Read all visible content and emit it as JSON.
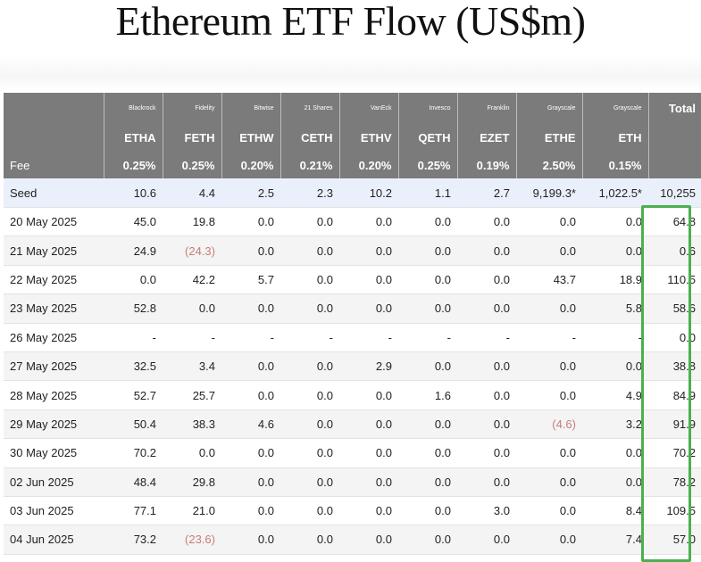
{
  "title": "Ethereum ETF Flow (US$m)",
  "columns": {
    "issuers": [
      "Blackrock",
      "Fidelity",
      "Bitwise",
      "21 Shares",
      "VanEck",
      "Invesco",
      "Franklin",
      "Grayscale",
      "Grayscale"
    ],
    "total_label": "Total",
    "tickers": [
      "ETHA",
      "FETH",
      "ETHW",
      "CETH",
      "ETHV",
      "QETH",
      "EZET",
      "ETHE",
      "ETH"
    ],
    "fee_label": "Fee",
    "fees": [
      "0.25%",
      "0.25%",
      "0.20%",
      "0.21%",
      "0.20%",
      "0.25%",
      "0.19%",
      "2.50%",
      "0.15%"
    ]
  },
  "rows": [
    {
      "label": "Seed",
      "values": [
        "10.6",
        "4.4",
        "2.5",
        "2.3",
        "10.2",
        "1.1",
        "2.7",
        "9,199.3*",
        "1,022.5*"
      ],
      "total": "10,255"
    },
    {
      "label": "20 May 2025",
      "values": [
        "45.0",
        "19.8",
        "0.0",
        "0.0",
        "0.0",
        "0.0",
        "0.0",
        "0.0",
        "0.0"
      ],
      "total": "64.8"
    },
    {
      "label": "21 May 2025",
      "values": [
        "24.9",
        "(24.3)",
        "0.0",
        "0.0",
        "0.0",
        "0.0",
        "0.0",
        "0.0",
        "0.0"
      ],
      "total": "0.6"
    },
    {
      "label": "22 May 2025",
      "values": [
        "0.0",
        "42.2",
        "5.7",
        "0.0",
        "0.0",
        "0.0",
        "0.0",
        "43.7",
        "18.9"
      ],
      "total": "110.5"
    },
    {
      "label": "23 May 2025",
      "values": [
        "52.8",
        "0.0",
        "0.0",
        "0.0",
        "0.0",
        "0.0",
        "0.0",
        "0.0",
        "5.8"
      ],
      "total": "58.6"
    },
    {
      "label": "26 May 2025",
      "values": [
        "-",
        "-",
        "-",
        "-",
        "-",
        "-",
        "-",
        "-",
        "-"
      ],
      "total": "0.0"
    },
    {
      "label": "27 May 2025",
      "values": [
        "32.5",
        "3.4",
        "0.0",
        "0.0",
        "2.9",
        "0.0",
        "0.0",
        "0.0",
        "0.0"
      ],
      "total": "38.8"
    },
    {
      "label": "28 May 2025",
      "values": [
        "52.7",
        "25.7",
        "0.0",
        "0.0",
        "0.0",
        "1.6",
        "0.0",
        "0.0",
        "4.9"
      ],
      "total": "84.9"
    },
    {
      "label": "29 May 2025",
      "values": [
        "50.4",
        "38.3",
        "4.6",
        "0.0",
        "0.0",
        "0.0",
        "0.0",
        "(4.6)",
        "3.2"
      ],
      "total": "91.9"
    },
    {
      "label": "30 May 2025",
      "values": [
        "70.2",
        "0.0",
        "0.0",
        "0.0",
        "0.0",
        "0.0",
        "0.0",
        "0.0",
        "0.0"
      ],
      "total": "70.2"
    },
    {
      "label": "02 Jun 2025",
      "values": [
        "48.4",
        "29.8",
        "0.0",
        "0.0",
        "0.0",
        "0.0",
        "0.0",
        "0.0",
        "0.0"
      ],
      "total": "78.2"
    },
    {
      "label": "03 Jun 2025",
      "values": [
        "77.1",
        "21.0",
        "0.0",
        "0.0",
        "0.0",
        "0.0",
        "3.0",
        "0.0",
        "8.4"
      ],
      "total": "109.5"
    },
    {
      "label": "04 Jun 2025",
      "values": [
        "73.2",
        "(23.6)",
        "0.0",
        "0.0",
        "0.0",
        "0.0",
        "0.0",
        "0.0",
        "7.4"
      ],
      "total": "57.0"
    }
  ],
  "colors": {
    "header_bg": "#7b7b7b",
    "seed_bg": "#eaf0fb",
    "negative": "#c97b7b",
    "highlight": "#4caf50"
  }
}
